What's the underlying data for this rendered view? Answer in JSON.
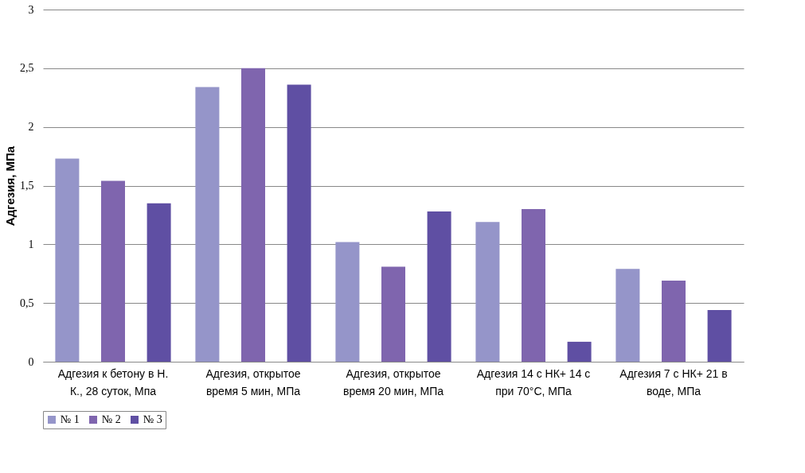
{
  "chart_data": {
    "type": "bar",
    "ylabel": "Адгезия, МПа",
    "categories": [
      "Адгезия к бетону в Н. К., 28 суток, Мпа",
      "Адгезия, открытое время 5 мин, МПа",
      "Адгезия, открытое время 20 мин, МПа",
      "Адгезия 14 с НК+ 14 с при 70°С, МПа",
      "Адгезия 7 с НК+ 21 в воде, МПа"
    ],
    "series": [
      {
        "name": "№ 1",
        "color": "#9595c9",
        "values": [
          1.73,
          2.34,
          1.02,
          1.19,
          0.79
        ]
      },
      {
        "name": "№ 2",
        "color": "#7f65ae",
        "values": [
          1.54,
          2.5,
          0.81,
          1.3,
          0.69
        ]
      },
      {
        "name": "№ 3",
        "color": "#5f4fa3",
        "values": [
          1.35,
          2.36,
          1.28,
          0.17,
          0.44
        ]
      }
    ],
    "ylim": [
      0,
      3
    ],
    "yticks": [
      0,
      {
        "value": 0.5,
        "label": "0,5"
      },
      1,
      {
        "value": 1.5,
        "label": "1,5"
      },
      2,
      {
        "value": 2.5,
        "label": "2,5"
      },
      3
    ],
    "grid": "y",
    "legend": "bottom"
  }
}
